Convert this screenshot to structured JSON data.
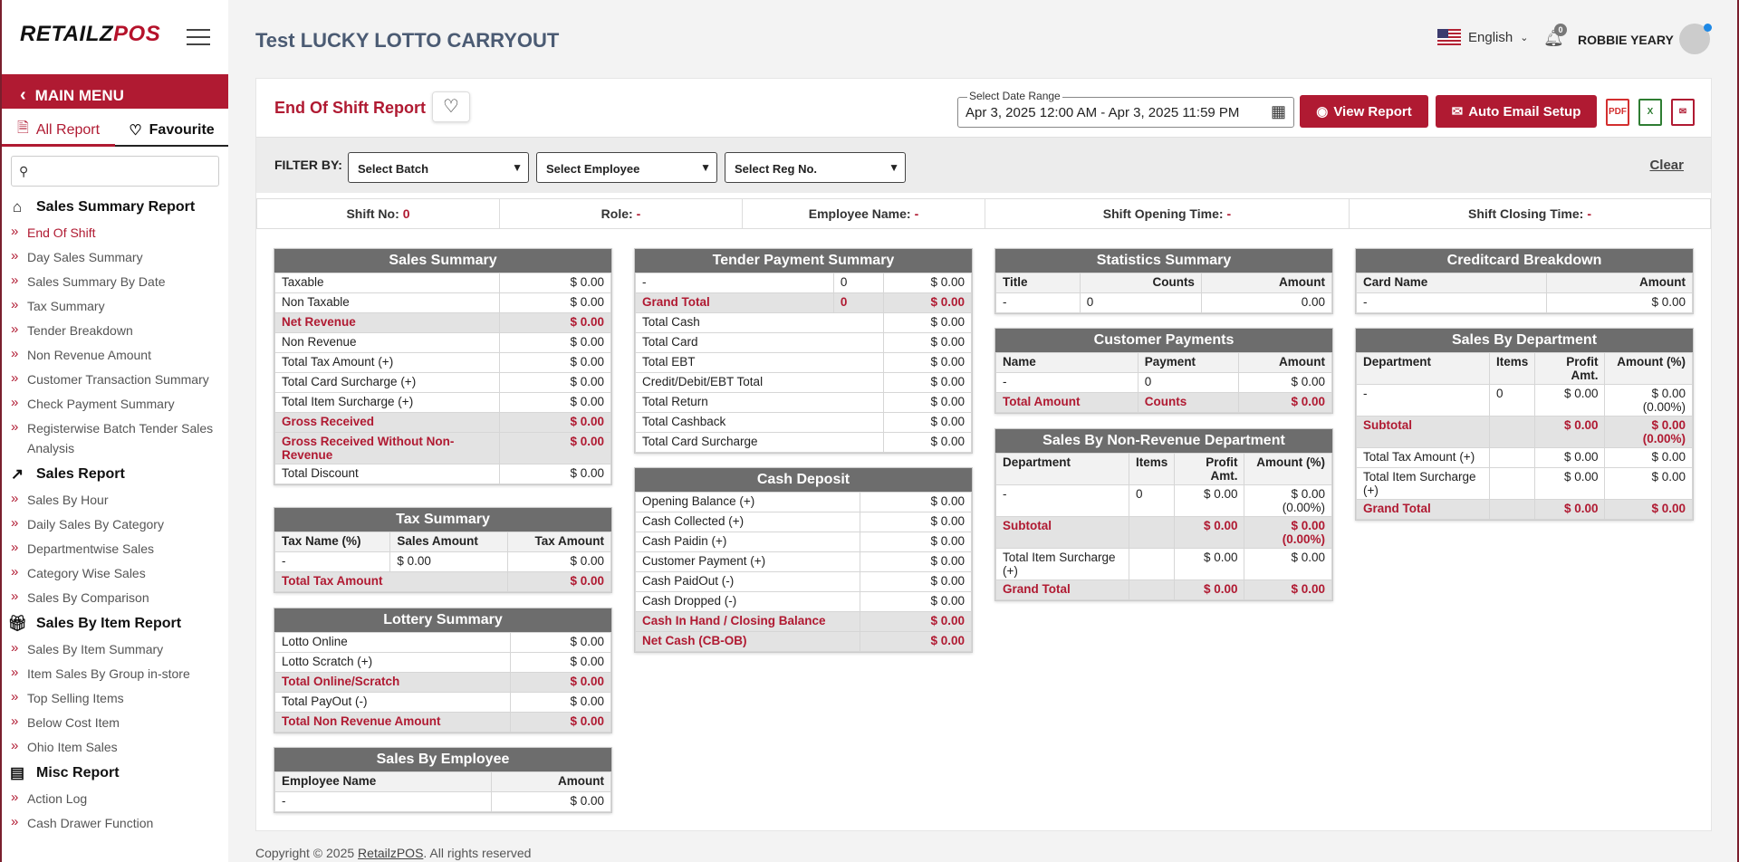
{
  "sidebar": {
    "logo_left": "RETAILZ",
    "logo_right": "POS",
    "main_menu": "MAIN MENU",
    "tab_all": "All Report",
    "tab_fav": "Favourite",
    "search_placeholder": "",
    "sections": [
      {
        "title": "Sales Summary Report",
        "icon": "building-chart-icon",
        "items": [
          "End Of Shift",
          "Day Sales Summary",
          "Sales Summary By Date",
          "Tax Summary",
          "Tender Breakdown",
          "Non Revenue Amount",
          "Customer Transaction Summary",
          "Check Payment Summary",
          "Registerwise Batch Tender Sales Analysis"
        ]
      },
      {
        "title": "Sales Report",
        "icon": "line-chart-icon",
        "items": [
          "Sales By Hour",
          "Daily Sales By Category",
          "Departmentwise Sales",
          "Category Wise Sales",
          "Sales By Comparison"
        ]
      },
      {
        "title": "Sales By Item Report",
        "icon": "gift-icon",
        "items": [
          "Sales By Item Summary",
          "Item Sales By Group in-store",
          "Top Selling Items",
          "Below Cost Item",
          "Ohio Item Sales"
        ]
      },
      {
        "title": "Misc Report",
        "icon": "report-chart-icon",
        "items": [
          "Action Log",
          "Cash Drawer Function"
        ]
      }
    ]
  },
  "header": {
    "store": "Test LUCKY LOTTO CARRYOUT",
    "language": "English",
    "notif_count": "0",
    "user": "ROBBIE YEARY"
  },
  "report": {
    "title": "End Of Shift Report",
    "date_label": "Select Date Range",
    "date_value": "Apr 3, 2025 12:00 AM - Apr 3, 2025 11:59 PM",
    "view_btn": "View Report",
    "email_btn": "Auto Email Setup",
    "filter_label": "FILTER BY:",
    "batch": "Select Batch",
    "employee": "Select Employee",
    "reg": "Select Reg No.",
    "clear": "Clear",
    "info": {
      "shift_label": "Shift No:",
      "shift_val": "0",
      "role_label": "Role:",
      "role_val": "-",
      "emp_label": "Employee Name:",
      "emp_val": "-",
      "open_label": "Shift Opening Time:",
      "open_val": "-",
      "close_label": "Shift Closing Time:",
      "close_val": "-"
    }
  },
  "cards": {
    "sales_summary": {
      "title": "Sales Summary",
      "rows": [
        {
          "k": "Taxable",
          "v": "$ 0.00"
        },
        {
          "k": "Non Taxable",
          "v": "$ 0.00"
        },
        {
          "k": "Net Revenue",
          "v": "$ 0.00",
          "hl": true
        },
        {
          "k": "Non Revenue",
          "v": "$ 0.00"
        },
        {
          "k": "Total Tax Amount (+)",
          "v": "$ 0.00"
        },
        {
          "k": "Total Card Surcharge (+)",
          "v": "$ 0.00"
        },
        {
          "k": "Total Item Surcharge (+)",
          "v": "$ 0.00"
        },
        {
          "k": "Gross Received",
          "v": "$ 0.00",
          "hl": true
        },
        {
          "k": "Gross Received Without Non-Revenue",
          "v": "$ 0.00",
          "hl": true
        },
        {
          "k": "Total Discount",
          "v": "$ 0.00"
        }
      ]
    },
    "tax_summary": {
      "title": "Tax Summary",
      "headers": [
        "Tax Name (%)",
        "Sales Amount",
        "Tax Amount"
      ],
      "row": [
        "-",
        "$ 0.00",
        "$ 0.00"
      ],
      "total_label": "Total Tax Amount",
      "total": "$ 0.00"
    },
    "lottery": {
      "title": "Lottery Summary",
      "rows": [
        {
          "k": "Lotto Online",
          "v": "$ 0.00"
        },
        {
          "k": "Lotto Scratch (+)",
          "v": "$ 0.00"
        },
        {
          "k": "Total Online/Scratch",
          "v": "$ 0.00",
          "hl": true
        },
        {
          "k": "Total PayOut (-)",
          "v": "$ 0.00"
        },
        {
          "k": "Total Non Revenue Amount",
          "v": "$ 0.00",
          "hl": true
        }
      ]
    },
    "by_employee": {
      "title": "Sales By Employee",
      "headers": [
        "Employee Name",
        "Amount"
      ],
      "row": [
        "-",
        "$ 0.00"
      ]
    },
    "tender": {
      "title": "Tender Payment Summary",
      "top": [
        "-",
        "0",
        "$ 0.00"
      ],
      "grand": [
        "Grand Total",
        "0",
        "$ 0.00"
      ],
      "rows": [
        {
          "k": "Total Cash",
          "v": "$ 0.00"
        },
        {
          "k": "Total Card",
          "v": "$ 0.00"
        },
        {
          "k": "Total EBT",
          "v": "$ 0.00"
        },
        {
          "k": "Credit/Debit/EBT Total",
          "v": "$ 0.00"
        },
        {
          "k": "Total Return",
          "v": "$ 0.00"
        },
        {
          "k": "Total Cashback",
          "v": "$ 0.00"
        },
        {
          "k": "Total Card Surcharge",
          "v": "$ 0.00"
        }
      ]
    },
    "cash_deposit": {
      "title": "Cash Deposit",
      "rows": [
        {
          "k": "Opening Balance (+)",
          "v": "$ 0.00"
        },
        {
          "k": "Cash Collected (+)",
          "v": "$ 0.00"
        },
        {
          "k": "Cash Paidin (+)",
          "v": "$ 0.00"
        },
        {
          "k": "Customer Payment (+)",
          "v": "$ 0.00"
        },
        {
          "k": "Cash PaidOut (-)",
          "v": "$ 0.00"
        },
        {
          "k": "Cash Dropped (-)",
          "v": "$ 0.00"
        },
        {
          "k": "Cash In Hand / Closing Balance",
          "v": "$ 0.00",
          "hl": true
        },
        {
          "k": "Net Cash (CB-OB)",
          "v": "$ 0.00",
          "hl": true
        }
      ]
    },
    "statistics": {
      "title": "Statistics Summary",
      "headers": [
        "Title",
        "Counts",
        "Amount"
      ],
      "row": [
        "-",
        "0",
        "0.00"
      ]
    },
    "cust_pay": {
      "title": "Customer Payments",
      "headers": [
        "Name",
        "Payment",
        "Amount"
      ],
      "row": [
        "-",
        "0",
        "$ 0.00"
      ],
      "total": [
        "Total Amount",
        "Counts",
        "$ 0.00"
      ]
    },
    "nonrev_dept": {
      "title": "Sales By Non-Revenue Department",
      "headers": [
        "Department",
        "Items",
        "Profit Amt.",
        "Amount (%)"
      ],
      "row": [
        "-",
        "0",
        "$ 0.00",
        "$ 0.00 (0.00%)"
      ],
      "subtotal": [
        "Subtotal",
        "",
        "$ 0.00",
        "$ 0.00 (0.00%)"
      ],
      "surcharge": [
        "Total Item Surcharge (+)",
        "",
        "$ 0.00",
        "$ 0.00"
      ],
      "grand": [
        "Grand Total",
        "",
        "$ 0.00",
        "$ 0.00"
      ]
    },
    "creditcard": {
      "title": "Creditcard Breakdown",
      "headers": [
        "Card Name",
        "Amount"
      ],
      "row": [
        "-",
        "$ 0.00"
      ]
    },
    "dept": {
      "title": "Sales By Department",
      "headers": [
        "Department",
        "Items",
        "Profit Amt.",
        "Amount (%)"
      ],
      "row": [
        "-",
        "0",
        "$ 0.00",
        "$ 0.00 (0.00%)"
      ],
      "subtotal": [
        "Subtotal",
        "",
        "$ 0.00",
        "$ 0.00 (0.00%)"
      ],
      "tax": [
        "Total Tax Amount (+)",
        "",
        "$ 0.00",
        "$ 0.00"
      ],
      "surcharge": [
        "Total Item Surcharge (+)",
        "",
        "$ 0.00",
        "$ 0.00"
      ],
      "grand": [
        "Grand Total",
        "",
        "$ 0.00",
        "$ 0.00"
      ]
    }
  },
  "footer": {
    "prefix": "Copyright © 2025 ",
    "link": "RetailzPOS",
    "suffix": ". All rights reserved"
  },
  "colors": {
    "accent": "#b01a32",
    "card_header": "#6d6d6d"
  }
}
